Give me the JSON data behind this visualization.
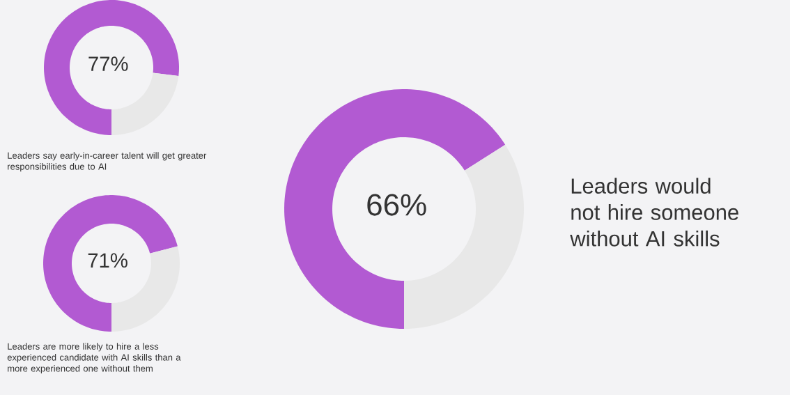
{
  "chart_data": [
    {
      "type": "donut",
      "title": "Leaders say early-in-career talent will get greater responsibilities due to AI",
      "categories": [
        null,
        null
      ],
      "values": [
        77,
        23
      ],
      "colors": [
        "#b25ad2",
        "#e8e8e8"
      ],
      "value_labels": [
        "77%",
        null
      ]
    },
    {
      "type": "donut",
      "title": "Leaders are more likely to hire a less experienced candidate with AI skills than a more experienced one without them",
      "categories": [
        null,
        null
      ],
      "values": [
        71,
        29
      ],
      "colors": [
        "#b25ad2",
        "#e8e8e8"
      ],
      "value_labels": [
        "71%",
        null
      ]
    },
    {
      "type": "donut",
      "title": "Leaders would not hire someone without AI skills",
      "categories": [
        null,
        null
      ],
      "values": [
        66,
        34
      ],
      "colors": [
        "#b25ad2",
        "#e8e8e8"
      ],
      "value_labels": [
        "66%",
        null
      ]
    }
  ]
}
